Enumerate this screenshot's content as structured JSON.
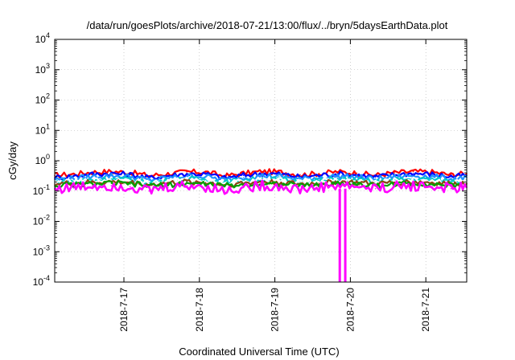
{
  "chart_data": {
    "type": "line",
    "title": "/data/run/goesPlots/archive/2018-07-21/13:00/flux/../bryn/5daysEarthData.plot",
    "xlabel": "Coordinated Universal Time (UTC)",
    "ylabel": "cGy/day",
    "yscale": "log",
    "ylim": [
      0.0001,
      10000
    ],
    "xlim": [
      "2018-07-16 02:00",
      "2018-07-21 13:00"
    ],
    "grid": true,
    "legend": "none",
    "y_ticks": [
      {
        "base": "10",
        "exp": "-4",
        "value": 0.0001
      },
      {
        "base": "10",
        "exp": "-3",
        "value": 0.001
      },
      {
        "base": "10",
        "exp": "-2",
        "value": 0.01
      },
      {
        "base": "10",
        "exp": "-1",
        "value": 0.1
      },
      {
        "base": "10",
        "exp": "0",
        "value": 1
      },
      {
        "base": "10",
        "exp": "1",
        "value": 10
      },
      {
        "base": "10",
        "exp": "2",
        "value": 100
      },
      {
        "base": "10",
        "exp": "3",
        "value": 1000
      },
      {
        "base": "10",
        "exp": "4",
        "value": 10000
      }
    ],
    "x_ticks": [
      {
        "label": "2018-7-17",
        "date": "2018-07-17"
      },
      {
        "label": "2018-7-18",
        "date": "2018-07-18"
      },
      {
        "label": "2018-7-19",
        "date": "2018-07-19"
      },
      {
        "label": "2018-7-20",
        "date": "2018-07-20"
      },
      {
        "label": "2018-7-21",
        "date": "2018-07-21"
      }
    ],
    "x": [
      "2018-07-16 02:00",
      "2018-07-16 08:00",
      "2018-07-16 14:00",
      "2018-07-16 20:00",
      "2018-07-17 02:00",
      "2018-07-17 08:00",
      "2018-07-17 14:00",
      "2018-07-17 20:00",
      "2018-07-18 02:00",
      "2018-07-18 08:00",
      "2018-07-18 14:00",
      "2018-07-18 20:00",
      "2018-07-19 02:00",
      "2018-07-19 08:00",
      "2018-07-19 14:00",
      "2018-07-19 20:00",
      "2018-07-20 02:00",
      "2018-07-20 08:00",
      "2018-07-20 14:00",
      "2018-07-20 20:00",
      "2018-07-21 02:00",
      "2018-07-21 08:00",
      "2018-07-21 13:00"
    ],
    "series": [
      {
        "color": "#ff0000",
        "values": [
          0.33,
          0.36,
          0.42,
          0.44,
          0.41,
          0.32,
          0.37,
          0.43,
          0.42,
          0.31,
          0.38,
          0.44,
          0.42,
          0.34,
          0.38,
          0.43,
          0.39,
          0.33,
          0.4,
          0.44,
          0.42,
          0.34,
          0.38
        ]
      },
      {
        "color": "#0000ff",
        "values": [
          0.28,
          0.31,
          0.36,
          0.38,
          0.35,
          0.27,
          0.32,
          0.37,
          0.36,
          0.27,
          0.33,
          0.38,
          0.36,
          0.29,
          0.33,
          0.37,
          0.34,
          0.29,
          0.35,
          0.38,
          0.36,
          0.3,
          0.33
        ]
      },
      {
        "color": "#1e90ff",
        "values": [
          0.24,
          0.26,
          0.3,
          0.32,
          0.3,
          0.23,
          0.27,
          0.31,
          0.3,
          0.23,
          0.28,
          0.32,
          0.3,
          0.25,
          0.28,
          0.31,
          0.29,
          0.25,
          0.29,
          0.32,
          0.3,
          0.25,
          0.28
        ]
      },
      {
        "color": "#00c8c8",
        "values": [
          0.2,
          0.21,
          0.24,
          0.25,
          0.24,
          0.19,
          0.22,
          0.25,
          0.24,
          0.19,
          0.23,
          0.25,
          0.24,
          0.2,
          0.22,
          0.25,
          0.23,
          0.2,
          0.23,
          0.25,
          0.24,
          0.21,
          0.23
        ]
      },
      {
        "color": "#ffffff",
        "values": [
          0.19,
          0.2,
          0.22,
          0.23,
          0.22,
          0.18,
          0.21,
          0.23,
          0.22,
          0.18,
          0.21,
          0.23,
          0.22,
          0.19,
          0.21,
          0.23,
          0.21,
          0.19,
          0.22,
          0.23,
          0.22,
          0.19,
          0.21
        ]
      },
      {
        "color": "#8b4513",
        "values": [
          0.17,
          0.18,
          0.19,
          0.2,
          0.19,
          0.16,
          0.18,
          0.2,
          0.19,
          0.16,
          0.18,
          0.2,
          0.19,
          0.17,
          0.18,
          0.2,
          0.19,
          0.17,
          0.19,
          0.2,
          0.19,
          0.17,
          0.18
        ]
      },
      {
        "color": "#00a000",
        "values": [
          0.15,
          0.16,
          0.17,
          0.18,
          0.17,
          0.15,
          0.16,
          0.18,
          0.17,
          0.15,
          0.16,
          0.18,
          0.17,
          0.15,
          0.16,
          0.18,
          0.17,
          0.15,
          0.17,
          0.18,
          0.17,
          0.15,
          0.16
        ]
      },
      {
        "color": "#ff00ff",
        "values": [
          0.12,
          0.13,
          0.15,
          0.15,
          0.14,
          0.1,
          0.13,
          0.15,
          0.14,
          0.1,
          0.13,
          0.15,
          0.14,
          0.11,
          0.13,
          0.15,
          0.14,
          0.12,
          0.14,
          0.15,
          0.14,
          0.12,
          0.13
        ]
      }
    ],
    "magenta_dropouts": [
      {
        "start": "2018-07-19 20:15",
        "end": "2018-07-19 20:45",
        "value": 0.0001
      },
      {
        "start": "2018-07-19 22:00",
        "end": "2018-07-19 22:30",
        "value": 0.0001
      }
    ]
  }
}
